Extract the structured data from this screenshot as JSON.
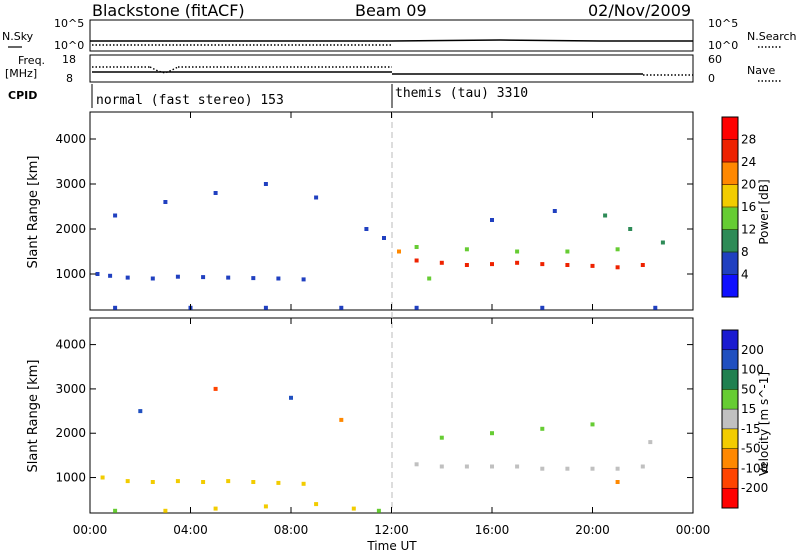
{
  "header": {
    "title": "Blackstone (fitACF)",
    "beam": "Beam 09",
    "date": "02/Nov/2009"
  },
  "sky_panel": {
    "left_label": "N.Sky",
    "right_label": "N.Search",
    "left_ticks": [
      "10^5",
      "10^0"
    ],
    "right_ticks": [
      "10^5",
      "10^0"
    ]
  },
  "freq_panel": {
    "left_label_1": "Freq.",
    "left_label_2": "[MHz]",
    "right_label": "Nave",
    "left_ticks": [
      "18",
      "8"
    ],
    "right_ticks": [
      "60",
      "0"
    ]
  },
  "cpid": {
    "label": "CPID",
    "segments": [
      {
        "text": "normal (fast stereo) 153",
        "start_hour": 0
      },
      {
        "text": "themis (tau) 3310",
        "start_hour": 12
      }
    ]
  },
  "power_panel": {
    "ylabel": "Slant Range [km]",
    "colorbar_label": "Power [dB]",
    "colorbar_ticks": [
      "4",
      "8",
      "12",
      "16",
      "20",
      "24",
      "28"
    ],
    "colorbar_colors": [
      "#1010ff",
      "#2040c0",
      "#2e8b57",
      "#66cc33",
      "#f2cc00",
      "#ff8800",
      "#ee2200",
      "#ff0000"
    ]
  },
  "velocity_panel": {
    "ylabel": "Slant Range [km]",
    "colorbar_label": "Velocity [m s^-1]",
    "colorbar_ticks": [
      "200",
      "100",
      "50",
      "15",
      "-15",
      "-50",
      "-100",
      "-200"
    ],
    "colorbar_colors": [
      "#1a1ad0",
      "#2050c0",
      "#208050",
      "#66cc33",
      "#c0c0c0",
      "#f2cc00",
      "#ff8800",
      "#ff4400",
      "#ff0000"
    ]
  },
  "xaxis": {
    "xlabel": "Time UT",
    "tick_labels": [
      "00:00",
      "04:00",
      "08:00",
      "12:00",
      "16:00",
      "20:00",
      "00:00"
    ]
  },
  "chart_data": [
    {
      "type": "scatter",
      "title": "Power",
      "xlabel": "Time UT",
      "ylabel": "Slant Range [km]",
      "xlim": [
        0,
        24
      ],
      "ylim": [
        200,
        4600
      ],
      "yticks": [
        1000,
        2000,
        3000,
        4000
      ],
      "xticks": [
        "00:00",
        "04:00",
        "08:00",
        "12:00",
        "16:00",
        "20:00",
        "00:00"
      ],
      "colorbar": {
        "label": "Power [dB]",
        "ticks": [
          4,
          8,
          12,
          16,
          20,
          24,
          28
        ]
      },
      "series": [
        {
          "values": [
            [
              0.3,
              1000,
              6
            ],
            [
              0.8,
              960,
              6
            ],
            [
              1.5,
              920,
              6
            ],
            [
              2.5,
              900,
              6
            ],
            [
              3.5,
              940,
              6
            ],
            [
              4.5,
              930,
              6
            ],
            [
              5.5,
              920,
              6
            ],
            [
              6.5,
              910,
              6
            ],
            [
              7.5,
              900,
              6
            ],
            [
              8.5,
              880,
              6
            ],
            [
              1.0,
              2300,
              6
            ],
            [
              3.0,
              2600,
              6
            ],
            [
              5.0,
              2800,
              6
            ],
            [
              7.0,
              3000,
              6
            ],
            [
              9.0,
              2700,
              6
            ],
            [
              11.0,
              2000,
              6
            ],
            [
              11.7,
              1800,
              6
            ],
            [
              1.0,
              250,
              6
            ],
            [
              4.0,
              250,
              6
            ],
            [
              7.0,
              250,
              6
            ],
            [
              10.0,
              250,
              6
            ],
            [
              13.0,
              250,
              6
            ],
            [
              18.0,
              250,
              6
            ],
            [
              22.5,
              250,
              6
            ],
            [
              12.3,
              1500,
              22
            ],
            [
              13.0,
              1300,
              26
            ],
            [
              14.0,
              1250,
              26
            ],
            [
              15.0,
              1200,
              26
            ],
            [
              16.0,
              1220,
              26
            ],
            [
              17.0,
              1250,
              26
            ],
            [
              18.0,
              1220,
              26
            ],
            [
              19.0,
              1200,
              26
            ],
            [
              20.0,
              1180,
              26
            ],
            [
              21.0,
              1150,
              26
            ],
            [
              22.0,
              1200,
              26
            ],
            [
              13.0,
              1600,
              12
            ],
            [
              15.0,
              1550,
              12
            ],
            [
              17.0,
              1500,
              14
            ],
            [
              19.0,
              1500,
              14
            ],
            [
              21.0,
              1550,
              12
            ],
            [
              22.8,
              1700,
              8
            ],
            [
              13.5,
              900,
              12
            ],
            [
              16.0,
              2200,
              6
            ],
            [
              18.5,
              2400,
              6
            ],
            [
              20.5,
              2300,
              8
            ],
            [
              21.5,
              2000,
              8
            ]
          ]
        }
      ]
    },
    {
      "type": "scatter",
      "title": "Velocity",
      "xlabel": "Time UT",
      "ylabel": "Slant Range [km]",
      "xlim": [
        0,
        24
      ],
      "ylim": [
        200,
        4600
      ],
      "yticks": [
        1000,
        2000,
        3000,
        4000
      ],
      "xticks": [
        "00:00",
        "04:00",
        "08:00",
        "12:00",
        "16:00",
        "20:00",
        "00:00"
      ],
      "colorbar": {
        "label": "Velocity [m s^-1]",
        "ticks": [
          200,
          100,
          50,
          15,
          -15,
          -50,
          -100,
          -200
        ]
      },
      "series": [
        {
          "values": [
            [
              0.5,
              1000,
              -40
            ],
            [
              1.5,
              920,
              -30
            ],
            [
              2.5,
              900,
              -20
            ],
            [
              3.5,
              920,
              -30
            ],
            [
              4.5,
              900,
              -40
            ],
            [
              5.5,
              920,
              -30
            ],
            [
              6.5,
              900,
              -20
            ],
            [
              7.5,
              880,
              -40
            ],
            [
              8.5,
              860,
              -30
            ],
            [
              1.0,
              250,
              20
            ],
            [
              3.0,
              250,
              -30
            ],
            [
              5.0,
              300,
              -40
            ],
            [
              7.0,
              350,
              -50
            ],
            [
              9.0,
              400,
              -50
            ],
            [
              10.5,
              300,
              -40
            ],
            [
              11.5,
              250,
              30
            ],
            [
              2.0,
              2500,
              120
            ],
            [
              5.0,
              3000,
              -120
            ],
            [
              8.0,
              2800,
              150
            ],
            [
              10.0,
              2300,
              -80
            ],
            [
              13.0,
              1300,
              0
            ],
            [
              14.0,
              1250,
              0
            ],
            [
              15.0,
              1250,
              0
            ],
            [
              16.0,
              1250,
              0
            ],
            [
              17.0,
              1250,
              0
            ],
            [
              18.0,
              1200,
              0
            ],
            [
              19.0,
              1200,
              0
            ],
            [
              20.0,
              1200,
              0
            ],
            [
              21.0,
              1200,
              0
            ],
            [
              22.0,
              1250,
              0
            ],
            [
              14.0,
              1900,
              30
            ],
            [
              16.0,
              2000,
              30
            ],
            [
              18.0,
              2100,
              30
            ],
            [
              20.0,
              2200,
              30
            ],
            [
              21.0,
              900,
              -60
            ],
            [
              22.3,
              1800,
              0
            ]
          ]
        }
      ]
    }
  ]
}
